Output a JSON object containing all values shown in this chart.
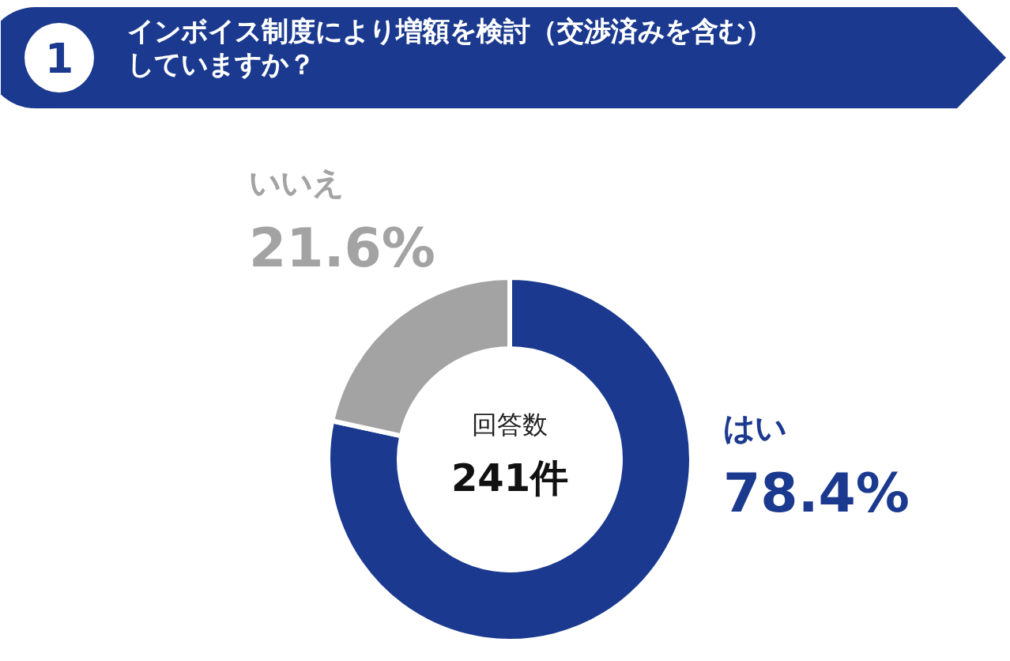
{
  "chart_data": {
    "type": "donut",
    "title": "インボイス制度により増額を検討（交渉済みを含む）していますか？",
    "categories": [
      "はい",
      "いいえ"
    ],
    "values": [
      78.4,
      21.6
    ],
    "colors": [
      "#1b3a8f",
      "#a3a3a3"
    ],
    "value_labels": [
      "78.4%",
      "21.6%"
    ],
    "annotations": [
      "1",
      "回答数",
      "241件"
    ]
  }
}
